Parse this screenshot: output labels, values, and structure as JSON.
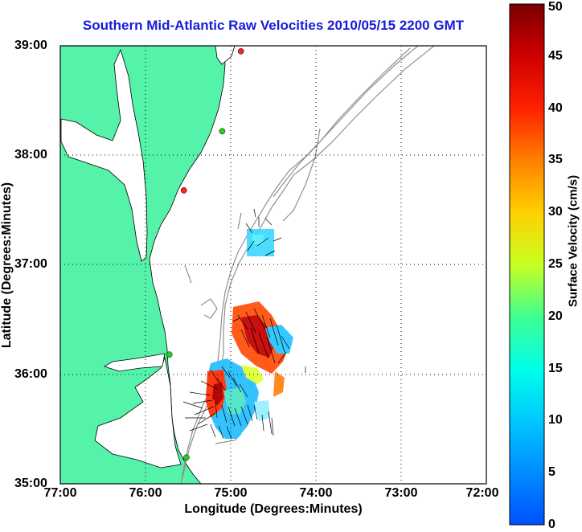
{
  "title": "Southern Mid-Atlantic Raw Velocities 2010/05/15 2200 GMT",
  "xlabel": "Longitude (Degrees:Minutes)",
  "ylabel": "Latitude (Degrees:Minutes)",
  "colorbar": {
    "label": "Surface Velocity (cm/s)",
    "ticks": [
      "0",
      "5",
      "10",
      "15",
      "20",
      "25",
      "30",
      "35",
      "40",
      "45",
      "50"
    ],
    "range": [
      0,
      50
    ]
  },
  "map": {
    "x_ticks": [
      "77:00",
      "76:00",
      "75:00",
      "74:00",
      "73:00",
      "72:00"
    ],
    "y_ticks": [
      "39:00",
      "38:00",
      "37:00",
      "36:00",
      "35:00"
    ],
    "lon_range": [
      -77,
      -72
    ],
    "lat_range": [
      35,
      39
    ],
    "grid": "dotted",
    "land_color": "#55f2aa",
    "bathymetry_color": "#909090",
    "stations": [
      {
        "lon": -74.88,
        "lat": 38.95,
        "status": "red"
      },
      {
        "lon": -75.1,
        "lat": 38.22,
        "status": "green"
      },
      {
        "lon": -75.55,
        "lat": 37.68,
        "status": "red"
      },
      {
        "lon": -75.72,
        "lat": 36.18,
        "status": "green"
      },
      {
        "lon": -75.52,
        "lat": 35.24,
        "status": "green"
      }
    ]
  }
}
